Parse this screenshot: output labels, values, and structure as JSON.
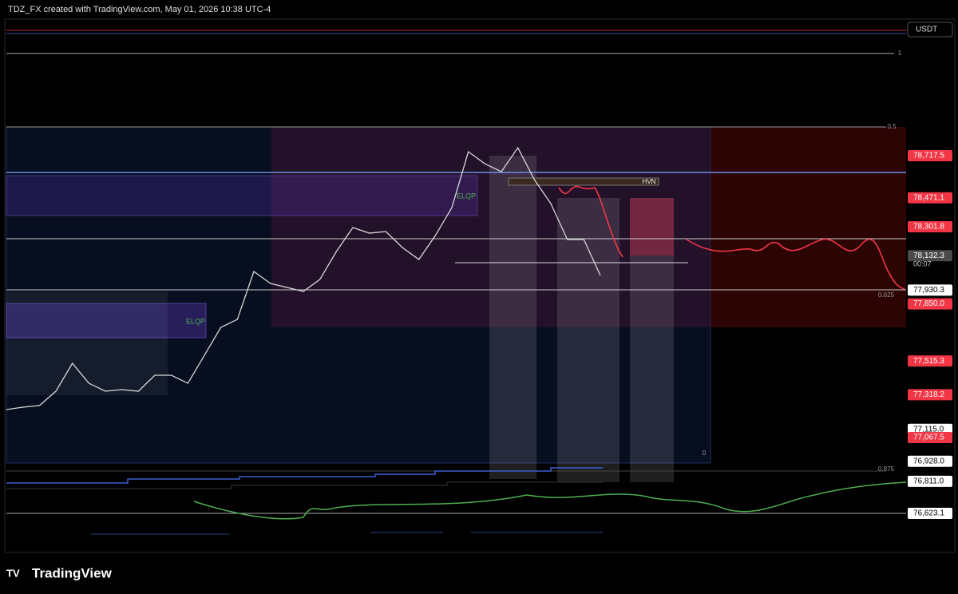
{
  "header": {
    "title": "TDZ_FX created with TradingView.com, May 01, 2026 10:38 UTC-4"
  },
  "currency": "USDT",
  "chart_data": {
    "type": "line",
    "ylim": [
      76403.5,
      79489
    ],
    "price": {
      "color": "#d9d9d9",
      "values": [
        77230.8,
        77244.9,
        77254.2,
        77338.4,
        77502.0,
        77385.1,
        77338.4,
        77347.7,
        77338.4,
        77431.9,
        77431.9,
        77385.1,
        77548.7,
        77712.4,
        77759.1,
        78039.6,
        77969.5,
        77946.1,
        77922.7,
        77992.9,
        78156.5,
        78296.7,
        78264.0,
        78273.4,
        78179.9,
        78109.7,
        78250.0,
        78413.6,
        78740.9,
        78670.7,
        78624.0,
        78764.3,
        78577.2,
        78437.0,
        78226.6,
        78226.6,
        78016.2
      ]
    },
    "price_labels": [
      {
        "value": 78717.5,
        "label": "78,717.5",
        "color": "#f23645"
      },
      {
        "value": 78471.1,
        "label": "78,471.1",
        "color": "#f23645"
      },
      {
        "value": 78301.8,
        "label": "78,301.8",
        "color": "#f23645"
      },
      {
        "value": 78132.3,
        "label": "78,132.3",
        "color": "#4a4a4a"
      },
      {
        "value": 77930.3,
        "label": "77,930.3",
        "color": "#ffffff"
      },
      {
        "value": 77850.0,
        "label": "77,850.0",
        "color": "#f23645"
      },
      {
        "value": 77515.3,
        "label": "77,515.3",
        "color": "#f23645"
      },
      {
        "value": 77318.2,
        "label": "77,318.2",
        "color": "#f23645"
      },
      {
        "value": 77115.0,
        "label": "77,115.0",
        "color": "#ffffff"
      },
      {
        "value": 77067.5,
        "label": "77,067.5",
        "color": "#f23645"
      },
      {
        "value": 76928.0,
        "label": "76,928.0",
        "color": "#ffffff"
      },
      {
        "value": 76811.0,
        "label": "76,811.0",
        "color": "#ffffff"
      },
      {
        "value": 76623.1,
        "label": "76,623.1",
        "color": "#ffffff"
      }
    ],
    "countdown": "00:07",
    "fib_labels": [
      "1",
      "0.5",
      "0.625",
      "0.875",
      "0"
    ],
    "annotations": [
      "ELQP",
      "ELQP",
      "HVN"
    ]
  },
  "footer": {
    "logo": "TradingView"
  }
}
